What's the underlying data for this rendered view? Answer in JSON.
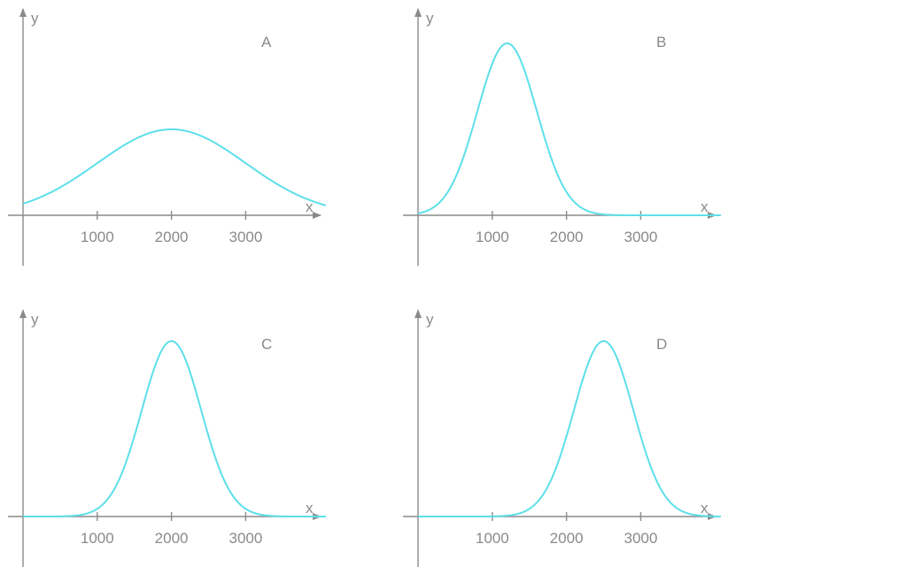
{
  "curve_color": "#5ddfe9",
  "axis_color": "#8a8a8a",
  "chart_data": [
    {
      "type": "line",
      "panel_label": "A",
      "xlabel": "x",
      "ylabel": "y",
      "xticks": [
        1000,
        2000,
        3000
      ],
      "xlim": [
        0,
        4000
      ],
      "ylim": [
        0,
        1
      ],
      "curve": {
        "shape": "gaussian",
        "mean": 2000,
        "std": 1000,
        "peak": 0.5
      }
    },
    {
      "type": "line",
      "panel_label": "B",
      "xlabel": "x",
      "ylabel": "y",
      "xticks": [
        1000,
        2000,
        3000
      ],
      "xlim": [
        0,
        4000
      ],
      "ylim": [
        0,
        1
      ],
      "curve": {
        "shape": "gaussian",
        "mean": 1200,
        "std": 400,
        "peak": 1.0
      }
    },
    {
      "type": "line",
      "panel_label": "C",
      "xlabel": "x",
      "ylabel": "y",
      "xticks": [
        1000,
        2000,
        3000
      ],
      "xlim": [
        0,
        4000
      ],
      "ylim": [
        0,
        1
      ],
      "curve": {
        "shape": "gaussian",
        "mean": 2000,
        "std": 400,
        "peak": 1.0
      }
    },
    {
      "type": "line",
      "panel_label": "D",
      "xlabel": "x",
      "ylabel": "y",
      "xticks": [
        1000,
        2000,
        3000
      ],
      "xlim": [
        0,
        4000
      ],
      "ylim": [
        0,
        1
      ],
      "curve": {
        "shape": "gaussian",
        "mean": 2500,
        "std": 400,
        "peak": 1.0
      }
    }
  ]
}
